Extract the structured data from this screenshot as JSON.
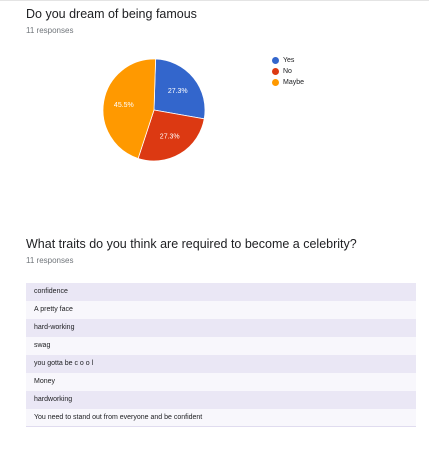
{
  "q1": {
    "title": "Do you dream of being famous",
    "responses": "11 responses"
  },
  "chart_data": {
    "type": "pie",
    "labels": [
      "Yes",
      "No",
      "Maybe"
    ],
    "values": [
      27.3,
      27.3,
      45.5
    ],
    "value_labels": [
      "27.3%",
      "27.3%",
      "45.5%"
    ],
    "colors": [
      "#3366cc",
      "#dc3912",
      "#ff9900"
    ],
    "legend_position": "right"
  },
  "q2": {
    "title": "What traits do you think are required to become a celebrity?",
    "responses": "11 responses",
    "answers": [
      "confidence",
      "A pretty face",
      "hard-working",
      "swag",
      "you gotta be c o o l",
      "Money",
      "hardworking",
      "You need to stand out from everyone and be confident"
    ]
  }
}
